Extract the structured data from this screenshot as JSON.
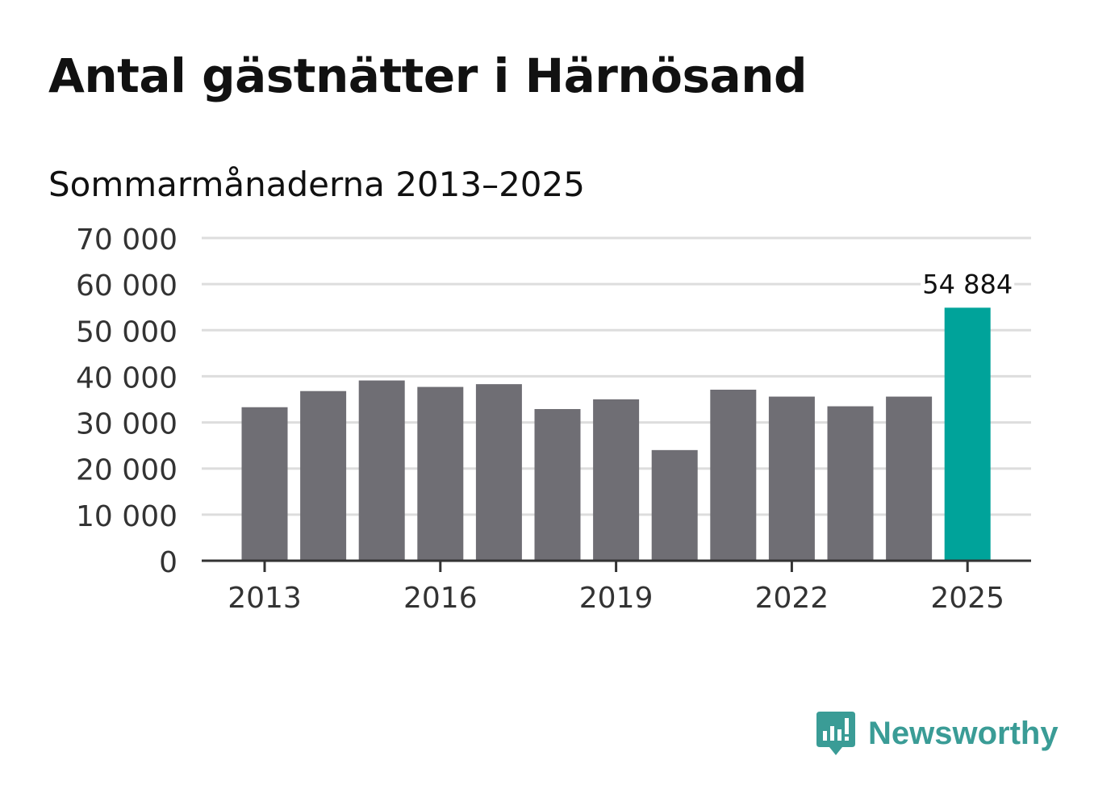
{
  "header": {
    "title": "Antal gästnätter i Härnösand",
    "subtitle": "Sommarmånaderna 2013–2025"
  },
  "brand": {
    "name": "Newsworthy",
    "color": "#3a9c96",
    "icon": "newsworthy-logo-icon"
  },
  "colors": {
    "bar_default": "#6f6e74",
    "bar_highlight": "#00a39a",
    "grid": "#dddddd",
    "axis": "#333333"
  },
  "chart_data": {
    "type": "bar",
    "categories": [
      "2013",
      "2014",
      "2015",
      "2016",
      "2017",
      "2018",
      "2019",
      "2020",
      "2021",
      "2022",
      "2023",
      "2024",
      "2025"
    ],
    "values": [
      33300,
      36800,
      39100,
      37700,
      38300,
      32900,
      35000,
      24000,
      37100,
      35600,
      33500,
      35600,
      54884
    ],
    "highlight_index": 12,
    "data_labels": [
      {
        "index": 12,
        "text": "54 884"
      }
    ],
    "ylim": [
      0,
      70000
    ],
    "yticks": [
      0,
      10000,
      20000,
      30000,
      40000,
      50000,
      60000,
      70000
    ],
    "ytick_labels": [
      "0",
      "10 000",
      "20 000",
      "30 000",
      "40 000",
      "50 000",
      "60 000",
      "70 000"
    ],
    "xtick_labels": [
      "2013",
      "2016",
      "2019",
      "2022",
      "2025"
    ],
    "xtick_indices": [
      0,
      3,
      6,
      9,
      12
    ],
    "grid": true,
    "xlabel": "",
    "ylabel": ""
  }
}
